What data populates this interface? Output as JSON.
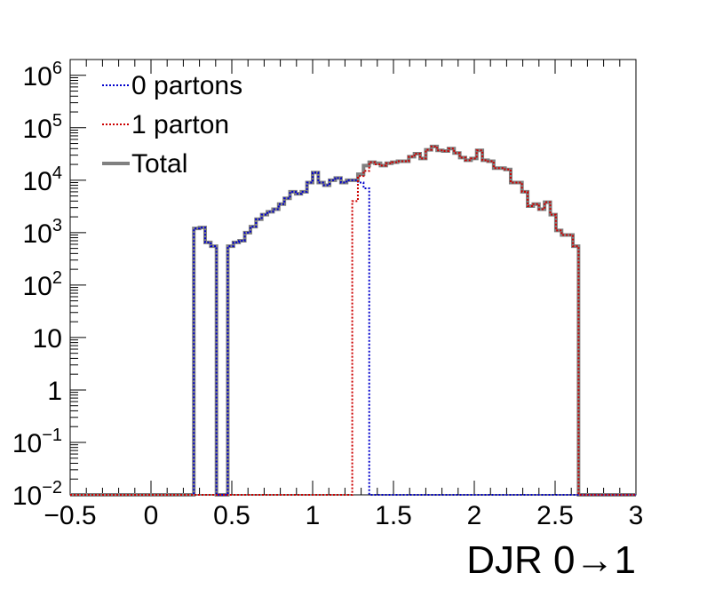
{
  "chart_data": {
    "type": "histogram",
    "title": "",
    "xlabel": "DJR 0→1",
    "ylabel": "",
    "xlim": [
      -0.5,
      3
    ],
    "ylim": [
      0.01,
      2000000
    ],
    "y_scale": "log",
    "grid": false,
    "legend_position": "top-left",
    "x_ticks": [
      {
        "value": -0.5,
        "label": "−0.5"
      },
      {
        "value": 0,
        "label": "0"
      },
      {
        "value": 0.5,
        "label": "0.5"
      },
      {
        "value": 1,
        "label": "1"
      },
      {
        "value": 1.5,
        "label": "1.5"
      },
      {
        "value": 2,
        "label": "2"
      },
      {
        "value": 2.5,
        "label": "2.5"
      },
      {
        "value": 3,
        "label": "3"
      }
    ],
    "y_ticks": [
      {
        "value": 0.01,
        "base": "10",
        "exp": "−2"
      },
      {
        "value": 0.1,
        "base": "10",
        "exp": "−1"
      },
      {
        "value": 1,
        "base": "1",
        "exp": ""
      },
      {
        "value": 10,
        "base": "10",
        "exp": ""
      },
      {
        "value": 100,
        "base": "10",
        "exp": "2"
      },
      {
        "value": 1000,
        "base": "10",
        "exp": "3"
      },
      {
        "value": 10000,
        "base": "10",
        "exp": "4"
      },
      {
        "value": 100000,
        "base": "10",
        "exp": "5"
      },
      {
        "value": 1000000,
        "base": "10",
        "exp": "6"
      }
    ],
    "bin_width": 0.035,
    "series": [
      {
        "name": "0 partons",
        "color": "#0000cc",
        "style": "dotted",
        "x_start": 0.265,
        "values": [
          1200,
          1250,
          650,
          550,
          0,
          0,
          550,
          650,
          700,
          1000,
          1300,
          1800,
          2200,
          2500,
          2800,
          3500,
          4500,
          6000,
          5500,
          6000,
          9000,
          14000,
          9000,
          8000,
          10000,
          11000,
          9000,
          10000,
          10000,
          9000,
          7000
        ]
      },
      {
        "name": "1 parton",
        "color": "#cc0000",
        "style": "dotted",
        "x_start": 1.245,
        "values": [
          4000,
          12000,
          15000,
          22000,
          20000,
          19000,
          21000,
          22000,
          23000,
          23000,
          28000,
          32000,
          26000,
          38000,
          44000,
          37000,
          36000,
          40000,
          33000,
          27000,
          24000,
          26000,
          37000,
          24000,
          23000,
          17000,
          17000,
          16000,
          9000,
          9000,
          6000,
          3200,
          3500,
          2800,
          3800,
          2200,
          1100,
          900,
          900,
          550
        ]
      },
      {
        "name": "Total",
        "color": "#808080",
        "style": "solid",
        "x_start": 0.265,
        "values": [
          1200,
          1250,
          650,
          550,
          0,
          0,
          550,
          650,
          700,
          1000,
          1300,
          1800,
          2200,
          2500,
          2800,
          3500,
          4500,
          6000,
          5500,
          6000,
          9000,
          14000,
          9000,
          8000,
          10000,
          11000,
          9000,
          10000,
          10000,
          13000,
          19000,
          22000,
          21000,
          19000,
          21000,
          22000,
          23000,
          23000,
          28000,
          32000,
          26000,
          38000,
          44000,
          37000,
          36000,
          40000,
          33000,
          27000,
          24000,
          26000,
          37000,
          24000,
          23000,
          17000,
          17000,
          16000,
          9000,
          9000,
          6000,
          3200,
          3500,
          2800,
          3800,
          2200,
          1100,
          900,
          900,
          550
        ]
      }
    ]
  }
}
